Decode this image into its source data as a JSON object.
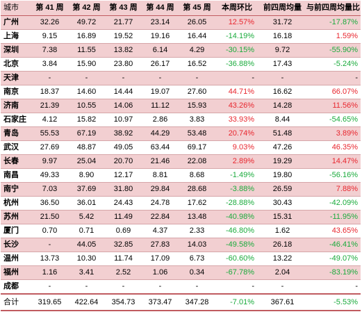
{
  "header": [
    "城市",
    "第 41 周",
    "第 42 周",
    "第 43 周",
    "第 44 周",
    "第 45 周",
    "本周环比",
    "前四周均量",
    "与前四周均量比"
  ],
  "rows": [
    {
      "city": "广州",
      "w41": "32.26",
      "w42": "49.72",
      "w43": "21.77",
      "w44": "23.14",
      "w45": "26.05",
      "wow": "12.57%",
      "avg4": "31.72",
      "vs_avg": "-17.87%"
    },
    {
      "city": "上海",
      "w41": "9.15",
      "w42": "16.89",
      "w43": "19.52",
      "w44": "19.16",
      "w45": "16.44",
      "wow": "-14.19%",
      "avg4": "16.18",
      "vs_avg": "1.59%"
    },
    {
      "city": "深圳",
      "w41": "7.38",
      "w42": "11.55",
      "w43": "13.82",
      "w44": "6.14",
      "w45": "4.29",
      "wow": "-30.15%",
      "avg4": "9.72",
      "vs_avg": "-55.90%"
    },
    {
      "city": "北京",
      "w41": "3.84",
      "w42": "15.90",
      "w43": "23.80",
      "w44": "26.17",
      "w45": "16.52",
      "wow": "-36.88%",
      "avg4": "17.43",
      "vs_avg": "-5.24%"
    },
    {
      "city": "天津",
      "w41": "-",
      "w42": "-",
      "w43": "-",
      "w44": "-",
      "w45": "-",
      "wow": "-",
      "avg4": "-",
      "vs_avg": "-"
    },
    {
      "city": "南京",
      "w41": "18.37",
      "w42": "14.60",
      "w43": "14.44",
      "w44": "19.07",
      "w45": "27.60",
      "wow": "44.71%",
      "avg4": "16.62",
      "vs_avg": "66.07%"
    },
    {
      "city": "济南",
      "w41": "21.39",
      "w42": "10.55",
      "w43": "14.06",
      "w44": "11.12",
      "w45": "15.93",
      "wow": "43.26%",
      "avg4": "14.28",
      "vs_avg": "11.56%"
    },
    {
      "city": "石家庄",
      "w41": "4.12",
      "w42": "15.82",
      "w43": "10.97",
      "w44": "2.86",
      "w45": "3.83",
      "wow": "33.93%",
      "avg4": "8.44",
      "vs_avg": "-54.65%"
    },
    {
      "city": "青岛",
      "w41": "55.53",
      "w42": "67.19",
      "w43": "38.92",
      "w44": "44.29",
      "w45": "53.48",
      "wow": "20.74%",
      "avg4": "51.48",
      "vs_avg": "3.89%"
    },
    {
      "city": "武汉",
      "w41": "27.69",
      "w42": "48.87",
      "w43": "49.05",
      "w44": "63.44",
      "w45": "69.17",
      "wow": "9.03%",
      "avg4": "47.26",
      "vs_avg": "46.35%"
    },
    {
      "city": "长春",
      "w41": "9.97",
      "w42": "25.04",
      "w43": "20.70",
      "w44": "21.46",
      "w45": "22.08",
      "wow": "2.89%",
      "avg4": "19.29",
      "vs_avg": "14.47%"
    },
    {
      "city": "南昌",
      "w41": "49.33",
      "w42": "8.90",
      "w43": "12.17",
      "w44": "8.81",
      "w45": "8.68",
      "wow": "-1.49%",
      "avg4": "19.80",
      "vs_avg": "-56.16%"
    },
    {
      "city": "南宁",
      "w41": "7.03",
      "w42": "37.69",
      "w43": "31.80",
      "w44": "29.84",
      "w45": "28.68",
      "wow": "-3.88%",
      "avg4": "26.59",
      "vs_avg": "7.88%"
    },
    {
      "city": "杭州",
      "w41": "36.50",
      "w42": "36.01",
      "w43": "24.43",
      "w44": "24.78",
      "w45": "17.62",
      "wow": "-28.88%",
      "avg4": "30.43",
      "vs_avg": "-42.09%"
    },
    {
      "city": "苏州",
      "w41": "21.50",
      "w42": "5.42",
      "w43": "11.49",
      "w44": "22.84",
      "w45": "13.48",
      "wow": "-40.98%",
      "avg4": "15.31",
      "vs_avg": "-11.95%"
    },
    {
      "city": "厦门",
      "w41": "0.70",
      "w42": "0.71",
      "w43": "0.69",
      "w44": "4.37",
      "w45": "2.33",
      "wow": "-46.80%",
      "avg4": "1.62",
      "vs_avg": "43.65%"
    },
    {
      "city": "长沙",
      "w41": "-",
      "w42": "44.05",
      "w43": "32.85",
      "w44": "27.83",
      "w45": "14.03",
      "wow": "-49.58%",
      "avg4": "26.18",
      "vs_avg": "-46.41%"
    },
    {
      "city": "温州",
      "w41": "13.73",
      "w42": "10.30",
      "w43": "11.74",
      "w44": "17.09",
      "w45": "6.73",
      "wow": "-60.60%",
      "avg4": "13.22",
      "vs_avg": "-49.07%"
    },
    {
      "city": "福州",
      "w41": "1.16",
      "w42": "3.41",
      "w43": "2.52",
      "w44": "1.06",
      "w45": "0.34",
      "wow": "-67.78%",
      "avg4": "2.04",
      "vs_avg": "-83.19%"
    },
    {
      "city": "成都",
      "w41": "-",
      "w42": "-",
      "w43": "-",
      "w44": "-",
      "w45": "-",
      "wow": "-",
      "avg4": "-",
      "vs_avg": "-"
    }
  ],
  "total": {
    "city": "合计",
    "w41": "319.65",
    "w42": "422.64",
    "w43": "354.73",
    "w44": "373.47",
    "w45": "347.28",
    "wow": "-7.01%",
    "avg4": "367.61",
    "vs_avg": "-5.53%"
  },
  "colors": {
    "header_bg": "#f2cfd1",
    "band_bg": "#f2cfd1",
    "positive": "#e8262e",
    "negative": "#1aab3c",
    "rule": "#c05b60"
  }
}
